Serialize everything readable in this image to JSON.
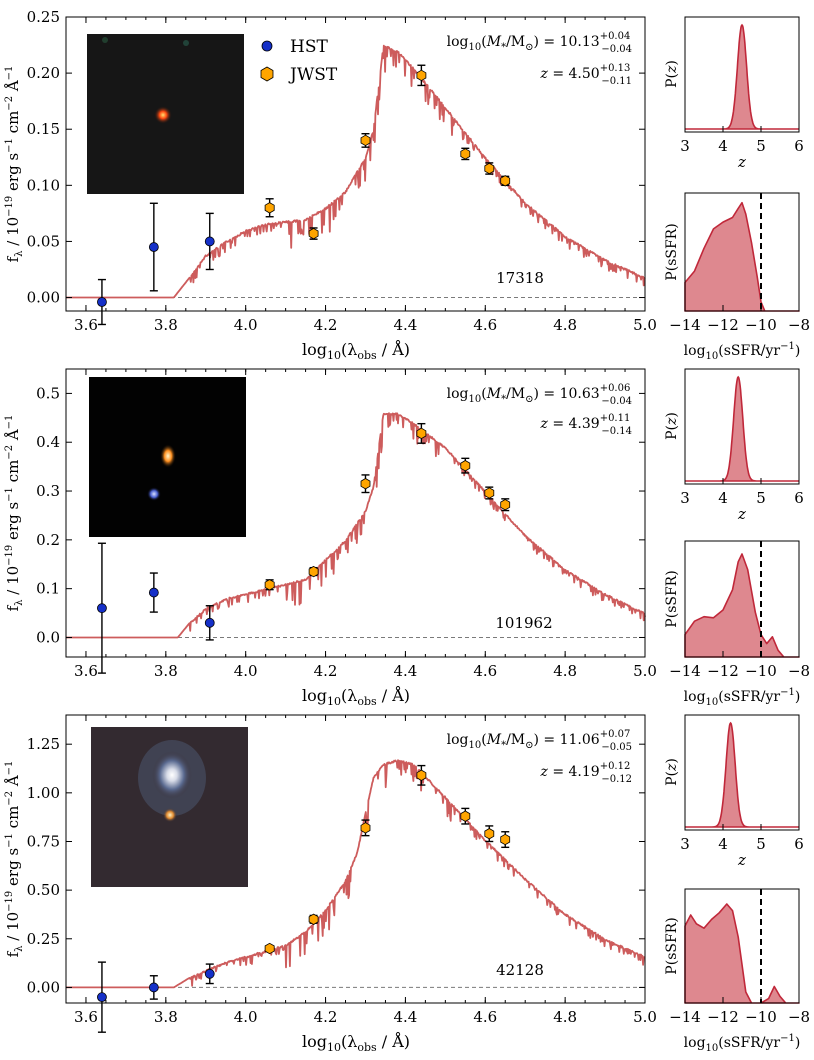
{
  "chart_data": [
    {
      "type": "line",
      "panel": "sed-1",
      "object_id": "17318",
      "xlabel": "log10(λ_obs / Å)",
      "ylabel": "f_λ / 10^-19 erg s^-1 cm^-2 Å^-1",
      "xlim": [
        3.55,
        5.0
      ],
      "ylim": [
        -0.012,
        0.25
      ],
      "xticks": [
        "3.6",
        "3.8",
        "4.0",
        "4.2",
        "4.4",
        "4.6",
        "4.8",
        "5.0"
      ],
      "yticks": [
        "0.00",
        "0.05",
        "0.10",
        "0.15",
        "0.20",
        "0.25"
      ],
      "legend": [
        "HST",
        "JWST"
      ],
      "legend_position": "top-center",
      "mass_label": "log10(M*/M⊙) = 10.13 +0.04 −0.04",
      "z_label": "z = 4.50 +0.13 −0.11",
      "series": [
        {
          "name": "HST",
          "points": [
            [
              3.64,
              -0.004,
              0.02
            ],
            [
              3.77,
              0.045,
              0.039
            ],
            [
              3.91,
              0.05,
              0.025
            ]
          ]
        },
        {
          "name": "JWST",
          "points": [
            [
              4.06,
              0.08,
              0.008
            ],
            [
              4.17,
              0.057,
              0.005
            ],
            [
              4.3,
              0.14,
              0.006
            ],
            [
              4.44,
              0.198,
              0.009
            ],
            [
              4.55,
              0.128,
              0.005
            ],
            [
              4.61,
              0.115,
              0.005
            ],
            [
              4.65,
              0.104,
              0.004
            ]
          ]
        }
      ],
      "model": [
        [
          3.55,
          0.0
        ],
        [
          3.82,
          0.0
        ],
        [
          3.86,
          0.018
        ],
        [
          3.9,
          0.038
        ],
        [
          3.95,
          0.05
        ],
        [
          4.0,
          0.06
        ],
        [
          4.05,
          0.066
        ],
        [
          4.1,
          0.068
        ],
        [
          4.15,
          0.07
        ],
        [
          4.2,
          0.08
        ],
        [
          4.25,
          0.095
        ],
        [
          4.3,
          0.125
        ],
        [
          4.32,
          0.15
        ],
        [
          4.345,
          0.225
        ],
        [
          4.38,
          0.22
        ],
        [
          4.42,
          0.205
        ],
        [
          4.5,
          0.17
        ],
        [
          4.6,
          0.125
        ],
        [
          4.7,
          0.085
        ],
        [
          4.8,
          0.055
        ],
        [
          4.9,
          0.034
        ],
        [
          5.0,
          0.018
        ]
      ]
    },
    {
      "type": "area",
      "panel": "pz-1",
      "xlabel": "z",
      "ylabel": "P(z)",
      "xlim": [
        3,
        6
      ],
      "xticks": [
        "3",
        "4",
        "5",
        "6"
      ],
      "peak": 4.5,
      "width": 0.12
    },
    {
      "type": "area",
      "panel": "psfr-1",
      "xlabel": "log10(sSFR/yr^-1)",
      "ylabel": "P(sSFR)",
      "xlim": [
        -14,
        -8
      ],
      "xticks": [
        "−14",
        "−12",
        "−10",
        "−8"
      ],
      "threshold": -10,
      "curve": [
        [
          -14,
          0.25
        ],
        [
          -13.5,
          0.35
        ],
        [
          -13,
          0.55
        ],
        [
          -12.5,
          0.72
        ],
        [
          -12,
          0.78
        ],
        [
          -11.5,
          0.82
        ],
        [
          -11.2,
          0.9
        ],
        [
          -11.0,
          0.95
        ],
        [
          -10.8,
          0.85
        ],
        [
          -10.5,
          0.6
        ],
        [
          -10.2,
          0.3
        ],
        [
          -10.0,
          0.08
        ],
        [
          -9.8,
          0.0
        ],
        [
          -8,
          0.0
        ]
      ]
    },
    {
      "type": "line",
      "panel": "sed-2",
      "object_id": "101962",
      "xlabel": "log10(λ_obs / Å)",
      "ylabel": "f_λ / 10^-19 erg s^-1 cm^-2 Å^-1",
      "xlim": [
        3.55,
        5.0
      ],
      "ylim": [
        -0.04,
        0.55
      ],
      "xticks": [
        "3.6",
        "3.8",
        "4.0",
        "4.2",
        "4.4",
        "4.6",
        "4.8",
        "5.0"
      ],
      "yticks": [
        "0.0",
        "0.1",
        "0.2",
        "0.3",
        "0.4",
        "0.5"
      ],
      "mass_label": "log10(M*/M⊙) = 10.63 +0.06 −0.04",
      "z_label": "z = 4.39 +0.11 −0.14",
      "series": [
        {
          "name": "HST",
          "points": [
            [
              3.64,
              0.06,
              0.133
            ],
            [
              3.77,
              0.092,
              0.04
            ],
            [
              3.91,
              0.03,
              0.035
            ]
          ]
        },
        {
          "name": "JWST",
          "points": [
            [
              4.06,
              0.108,
              0.01
            ],
            [
              4.17,
              0.135,
              0.008
            ],
            [
              4.3,
              0.315,
              0.018
            ],
            [
              4.44,
              0.418,
              0.02
            ],
            [
              4.55,
              0.352,
              0.015
            ],
            [
              4.61,
              0.296,
              0.012
            ],
            [
              4.65,
              0.272,
              0.012
            ]
          ]
        }
      ],
      "model": [
        [
          3.55,
          0.0
        ],
        [
          3.83,
          0.0
        ],
        [
          3.86,
          0.03
        ],
        [
          3.9,
          0.06
        ],
        [
          3.95,
          0.08
        ],
        [
          4.0,
          0.09
        ],
        [
          4.05,
          0.1
        ],
        [
          4.1,
          0.11
        ],
        [
          4.15,
          0.12
        ],
        [
          4.2,
          0.16
        ],
        [
          4.25,
          0.2
        ],
        [
          4.3,
          0.26
        ],
        [
          4.32,
          0.31
        ],
        [
          4.345,
          0.46
        ],
        [
          4.38,
          0.46
        ],
        [
          4.42,
          0.44
        ],
        [
          4.5,
          0.39
        ],
        [
          4.6,
          0.3
        ],
        [
          4.7,
          0.21
        ],
        [
          4.8,
          0.14
        ],
        [
          4.9,
          0.09
        ],
        [
          5.0,
          0.05
        ]
      ]
    },
    {
      "type": "area",
      "panel": "pz-2",
      "xlabel": "z",
      "ylabel": "P(z)",
      "xlim": [
        3,
        6
      ],
      "xticks": [
        "3",
        "4",
        "5",
        "6"
      ],
      "peak": 4.4,
      "width": 0.12
    },
    {
      "type": "area",
      "panel": "psfr-2",
      "xlabel": "log10(sSFR/yr^-1)",
      "ylabel": "P(sSFR)",
      "xlim": [
        -14,
        -8
      ],
      "xticks": [
        "−14",
        "−12",
        "−10",
        "−8"
      ],
      "threshold": -10,
      "curve": [
        [
          -14,
          0.2
        ],
        [
          -13.5,
          0.32
        ],
        [
          -13.0,
          0.36
        ],
        [
          -12.5,
          0.35
        ],
        [
          -12.0,
          0.42
        ],
        [
          -11.5,
          0.6
        ],
        [
          -11.2,
          0.85
        ],
        [
          -11.0,
          0.92
        ],
        [
          -10.7,
          0.78
        ],
        [
          -10.3,
          0.4
        ],
        [
          -10.0,
          0.2
        ],
        [
          -9.7,
          0.12
        ],
        [
          -9.4,
          0.18
        ],
        [
          -9.1,
          0.06
        ],
        [
          -8.8,
          0.0
        ],
        [
          -8,
          0.0
        ]
      ]
    },
    {
      "type": "line",
      "panel": "sed-3",
      "object_id": "42128",
      "xlabel": "log10(λ_obs / Å)",
      "ylabel": "f_λ / 10^-19 erg s^-1 cm^-2 Å^-1",
      "xlim": [
        3.55,
        5.0
      ],
      "ylim": [
        -0.08,
        1.4
      ],
      "xticks": [
        "3.6",
        "3.8",
        "4.0",
        "4.2",
        "4.4",
        "4.6",
        "4.8",
        "5.0"
      ],
      "yticks": [
        "0.00",
        "0.25",
        "0.50",
        "0.75",
        "1.00",
        "1.25"
      ],
      "mass_label": "log10(M*/M⊙) = 11.06 +0.07 −0.05",
      "z_label": "z = 4.19 +0.12 −0.12",
      "series": [
        {
          "name": "HST",
          "points": [
            [
              3.64,
              -0.05,
              0.18
            ],
            [
              3.77,
              0.0,
              0.06
            ],
            [
              3.91,
              0.07,
              0.05
            ]
          ]
        },
        {
          "name": "JWST",
          "points": [
            [
              4.06,
              0.2,
              0.01
            ],
            [
              4.17,
              0.35,
              0.02
            ],
            [
              4.3,
              0.82,
              0.04
            ],
            [
              4.44,
              1.09,
              0.05
            ],
            [
              4.55,
              0.88,
              0.04
            ],
            [
              4.61,
              0.79,
              0.04
            ],
            [
              4.65,
              0.76,
              0.04
            ]
          ]
        }
      ],
      "model": [
        [
          3.55,
          0.0
        ],
        [
          3.82,
          0.0
        ],
        [
          3.86,
          0.05
        ],
        [
          3.9,
          0.09
        ],
        [
          3.95,
          0.13
        ],
        [
          4.0,
          0.16
        ],
        [
          4.05,
          0.19
        ],
        [
          4.1,
          0.22
        ],
        [
          4.15,
          0.29
        ],
        [
          4.2,
          0.4
        ],
        [
          4.25,
          0.55
        ],
        [
          4.28,
          0.7
        ],
        [
          4.3,
          0.9
        ],
        [
          4.32,
          1.08
        ],
        [
          4.345,
          1.15
        ],
        [
          4.38,
          1.17
        ],
        [
          4.42,
          1.15
        ],
        [
          4.5,
          0.98
        ],
        [
          4.6,
          0.76
        ],
        [
          4.7,
          0.56
        ],
        [
          4.8,
          0.38
        ],
        [
          4.9,
          0.25
        ],
        [
          5.0,
          0.16
        ]
      ]
    },
    {
      "type": "area",
      "panel": "pz-3",
      "xlabel": "z",
      "ylabel": "P(z)",
      "xlim": [
        3,
        6
      ],
      "xticks": [
        "3",
        "4",
        "5",
        "6"
      ],
      "peak": 4.2,
      "width": 0.12
    },
    {
      "type": "area",
      "panel": "psfr-3",
      "xlabel": "log10(sSFR/yr^-1)",
      "ylabel": "P(sSFR)",
      "xlim": [
        -14,
        -8
      ],
      "xticks": [
        "−14",
        "−12",
        "−10",
        "−8"
      ],
      "threshold": -10,
      "curve": [
        [
          -14,
          0.7
        ],
        [
          -13.7,
          0.8
        ],
        [
          -13.4,
          0.72
        ],
        [
          -13.0,
          0.68
        ],
        [
          -12.6,
          0.76
        ],
        [
          -12.2,
          0.82
        ],
        [
          -11.8,
          0.9
        ],
        [
          -11.5,
          0.84
        ],
        [
          -11.2,
          0.6
        ],
        [
          -10.8,
          0.1
        ],
        [
          -10.5,
          0.0
        ],
        [
          -10.0,
          0.0
        ],
        [
          -9.6,
          0.04
        ],
        [
          -9.3,
          0.15
        ],
        [
          -9.0,
          0.06
        ],
        [
          -8.7,
          0.0
        ],
        [
          -8,
          0.0
        ]
      ]
    }
  ],
  "colors": {
    "model_line": "#cd5c5c",
    "posterior_fill": "#d8737b",
    "posterior_line": "#c0283a",
    "hst_marker": "#1530c8",
    "jwst_marker": "#ffa500",
    "zero_line": "#7a7a7a"
  },
  "legend_labels": {
    "hst": "HST",
    "jwst": "JWST"
  }
}
